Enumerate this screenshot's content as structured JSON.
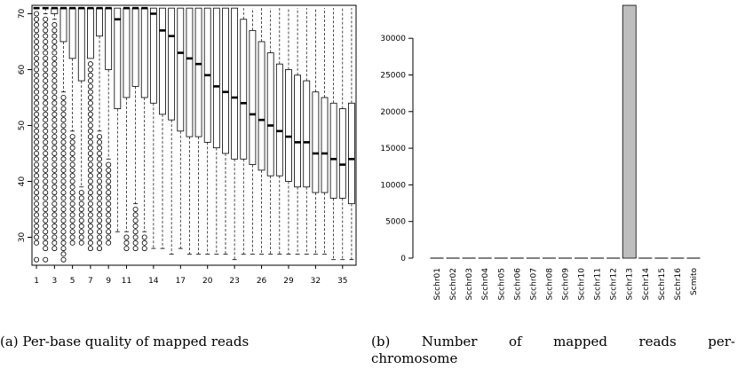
{
  "chart_data": [
    {
      "id": "per-base-quality",
      "type": "box",
      "title": "",
      "xlabel": "",
      "ylabel": "",
      "x_tick_labels": [
        "1",
        "3",
        "5",
        "7",
        "9",
        "11",
        "14",
        "17",
        "20",
        "23",
        "26",
        "29",
        "32",
        "35"
      ],
      "y_tick_labels": [
        "30",
        "40",
        "50",
        "60",
        "70"
      ],
      "ylim": [
        25,
        71.5
      ],
      "xlim": [
        0.5,
        36.5
      ],
      "boxes": [
        {
          "pos": 1,
          "q1": 71,
          "median": 71,
          "q3": 71,
          "wlo": 71,
          "whi": 71,
          "outliers": [
            26,
            29,
            30,
            31,
            32,
            33,
            34,
            35,
            36,
            37,
            38,
            39,
            40,
            41,
            42,
            43,
            44,
            45,
            46,
            47,
            48,
            49,
            50,
            51,
            52,
            53,
            54,
            55,
            56,
            57,
            58,
            59,
            60,
            61,
            62,
            63,
            64,
            65,
            66,
            67,
            68,
            69,
            70
          ]
        },
        {
          "pos": 2,
          "q1": 71,
          "median": 71,
          "q3": 71,
          "wlo": 70,
          "whi": 71,
          "outliers": [
            26,
            28,
            29,
            30,
            31,
            32,
            33,
            34,
            35,
            36,
            37,
            38,
            39,
            40,
            41,
            42,
            43,
            44,
            45,
            46,
            47,
            48,
            49,
            50,
            51,
            52,
            53,
            54,
            55,
            56,
            57,
            58,
            59,
            60,
            61,
            62,
            63,
            64,
            65,
            66,
            67,
            68,
            69
          ]
        },
        {
          "pos": 3,
          "q1": 70,
          "median": 71,
          "q3": 71,
          "wlo": 69,
          "whi": 71,
          "outliers": [
            28,
            29,
            30,
            31,
            32,
            33,
            34,
            35,
            36,
            37,
            38,
            39,
            40,
            41,
            42,
            43,
            44,
            45,
            46,
            47,
            48,
            49,
            50,
            51,
            52,
            53,
            54,
            55,
            56,
            57,
            58,
            59,
            60,
            61,
            62,
            63,
            64,
            65,
            66,
            67,
            68
          ]
        },
        {
          "pos": 4,
          "q1": 65,
          "median": 71,
          "q3": 71,
          "wlo": 56,
          "whi": 71,
          "outliers": [
            26,
            27,
            28,
            29,
            30,
            31,
            32,
            33,
            34,
            35,
            36,
            37,
            38,
            39,
            40,
            41,
            42,
            43,
            44,
            45,
            46,
            47,
            48,
            49,
            50,
            51,
            52,
            53,
            54,
            55
          ]
        },
        {
          "pos": 5,
          "q1": 62,
          "median": 71,
          "q3": 71,
          "wlo": 49,
          "whi": 71,
          "outliers": [
            29,
            30,
            31,
            32,
            33,
            34,
            35,
            36,
            37,
            38,
            39,
            40,
            41,
            42,
            43,
            44,
            45,
            46,
            47,
            48
          ]
        },
        {
          "pos": 6,
          "q1": 58,
          "median": 71,
          "q3": 71,
          "wlo": 39,
          "whi": 71,
          "outliers": [
            29,
            30,
            31,
            32,
            33,
            34,
            35,
            36,
            37,
            38
          ]
        },
        {
          "pos": 7,
          "q1": 62,
          "median": 71,
          "q3": 71,
          "wlo": 70,
          "whi": 71,
          "outliers": [
            28,
            29,
            30,
            31,
            32,
            33,
            34,
            35,
            36,
            37,
            38,
            39,
            40,
            41,
            42,
            43,
            44,
            45,
            46,
            47,
            48,
            49,
            50,
            51,
            52,
            53,
            54,
            55,
            56,
            57,
            58,
            59,
            60,
            61
          ]
        },
        {
          "pos": 8,
          "q1": 66,
          "median": 71,
          "q3": 71,
          "wlo": 49,
          "whi": 71,
          "outliers": [
            28,
            29,
            30,
            31,
            32,
            33,
            34,
            35,
            36,
            37,
            38,
            39,
            40,
            41,
            42,
            43,
            44,
            45,
            46,
            47,
            48
          ]
        },
        {
          "pos": 9,
          "q1": 60,
          "median": 71,
          "q3": 71,
          "wlo": 44,
          "whi": 71,
          "outliers": [
            29,
            30,
            31,
            32,
            33,
            34,
            35,
            36,
            37,
            38,
            39,
            40,
            41,
            42,
            43
          ]
        },
        {
          "pos": 10,
          "q1": 53,
          "median": 69,
          "q3": 71,
          "wlo": 31,
          "whi": 71,
          "outliers": []
        },
        {
          "pos": 11,
          "q1": 55,
          "median": 71,
          "q3": 71,
          "wlo": 31,
          "whi": 71,
          "outliers": [
            28,
            29,
            30
          ]
        },
        {
          "pos": 12,
          "q1": 57,
          "median": 71,
          "q3": 71,
          "wlo": 36,
          "whi": 71,
          "outliers": [
            28,
            29,
            30,
            31,
            32,
            33,
            34,
            35
          ]
        },
        {
          "pos": 13,
          "q1": 55,
          "median": 71,
          "q3": 71,
          "wlo": 31,
          "whi": 71,
          "outliers": [
            28,
            29,
            30
          ]
        },
        {
          "pos": 14,
          "q1": 54,
          "median": 70,
          "q3": 71,
          "wlo": 28,
          "whi": 71,
          "outliers": []
        },
        {
          "pos": 15,
          "q1": 52,
          "median": 67,
          "q3": 71,
          "wlo": 28,
          "whi": 71,
          "outliers": []
        },
        {
          "pos": 16,
          "q1": 51,
          "median": 66,
          "q3": 71,
          "wlo": 27,
          "whi": 71,
          "outliers": []
        },
        {
          "pos": 17,
          "q1": 49,
          "median": 63,
          "q3": 71,
          "wlo": 28,
          "whi": 71,
          "outliers": []
        },
        {
          "pos": 18,
          "q1": 48,
          "median": 62,
          "q3": 71,
          "wlo": 27,
          "whi": 71,
          "outliers": []
        },
        {
          "pos": 19,
          "q1": 48,
          "median": 61,
          "q3": 71,
          "wlo": 27,
          "whi": 71,
          "outliers": []
        },
        {
          "pos": 20,
          "q1": 47,
          "median": 59,
          "q3": 71,
          "wlo": 27,
          "whi": 71,
          "outliers": []
        },
        {
          "pos": 21,
          "q1": 46,
          "median": 57,
          "q3": 71,
          "wlo": 27,
          "whi": 71,
          "outliers": []
        },
        {
          "pos": 22,
          "q1": 45,
          "median": 56,
          "q3": 71,
          "wlo": 27,
          "whi": 71,
          "outliers": []
        },
        {
          "pos": 23,
          "q1": 44,
          "median": 55,
          "q3": 71,
          "wlo": 26,
          "whi": 71,
          "outliers": []
        },
        {
          "pos": 24,
          "q1": 44,
          "median": 54,
          "q3": 69,
          "wlo": 27,
          "whi": 71,
          "outliers": []
        },
        {
          "pos": 25,
          "q1": 43,
          "median": 52,
          "q3": 67,
          "wlo": 27,
          "whi": 71,
          "outliers": []
        },
        {
          "pos": 26,
          "q1": 42,
          "median": 51,
          "q3": 65,
          "wlo": 27,
          "whi": 71,
          "outliers": []
        },
        {
          "pos": 27,
          "q1": 41,
          "median": 50,
          "q3": 63,
          "wlo": 27,
          "whi": 71,
          "outliers": []
        },
        {
          "pos": 28,
          "q1": 41,
          "median": 49,
          "q3": 61,
          "wlo": 27,
          "whi": 71,
          "outliers": []
        },
        {
          "pos": 29,
          "q1": 40,
          "median": 48,
          "q3": 60,
          "wlo": 27,
          "whi": 71,
          "outliers": []
        },
        {
          "pos": 30,
          "q1": 39,
          "median": 47,
          "q3": 59,
          "wlo": 27,
          "whi": 71,
          "outliers": []
        },
        {
          "pos": 31,
          "q1": 39,
          "median": 47,
          "q3": 58,
          "wlo": 27,
          "whi": 71,
          "outliers": []
        },
        {
          "pos": 32,
          "q1": 38,
          "median": 45,
          "q3": 56,
          "wlo": 27,
          "whi": 71,
          "outliers": []
        },
        {
          "pos": 33,
          "q1": 38,
          "median": 45,
          "q3": 55,
          "wlo": 27,
          "whi": 71,
          "outliers": []
        },
        {
          "pos": 34,
          "q1": 37,
          "median": 44,
          "q3": 54,
          "wlo": 26,
          "whi": 71,
          "outliers": []
        },
        {
          "pos": 35,
          "q1": 37,
          "median": 43,
          "q3": 53,
          "wlo": 26,
          "whi": 71,
          "outliers": []
        },
        {
          "pos": 36,
          "q1": 36,
          "median": 44,
          "q3": 54,
          "wlo": 26,
          "whi": 71,
          "outliers": []
        }
      ],
      "grid": false,
      "box_color": "#ffffff"
    },
    {
      "id": "mapped-reads-per-chromosome",
      "type": "bar",
      "title": "",
      "xlabel": "",
      "ylabel": "",
      "categories": [
        "Scchr01",
        "Scchr02",
        "Scchr03",
        "Scchr04",
        "Scchr05",
        "Scchr06",
        "Scchr07",
        "Scchr08",
        "Scchr09",
        "Scchr10",
        "Scchr11",
        "Scchr12",
        "Scchr13",
        "Scchr14",
        "Scchr15",
        "Scchr16",
        "Scmito"
      ],
      "values": [
        0,
        0,
        0,
        0,
        0,
        0,
        0,
        0,
        0,
        0,
        0,
        0,
        34500,
        0,
        0,
        0,
        0
      ],
      "y_ticks": [
        0,
        5000,
        10000,
        15000,
        20000,
        25000,
        30000
      ],
      "ylim": [
        0,
        34500
      ],
      "grid": false,
      "bar_color": "#bebebe"
    }
  ],
  "captions": {
    "a": "(a) Per-base quality of mapped reads",
    "b_words": [
      "(b)",
      "Number",
      "of",
      "mapped",
      "reads",
      "per-"
    ],
    "b_line2": "chromosome"
  }
}
